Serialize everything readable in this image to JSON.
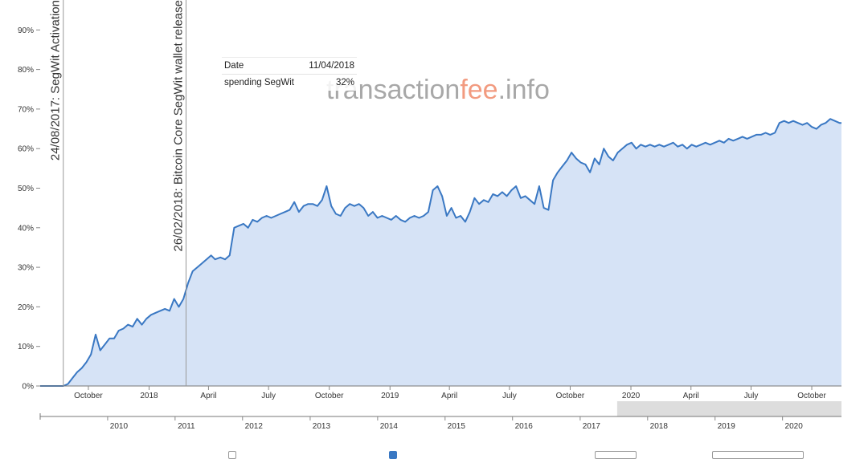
{
  "watermark": {
    "part1": "transaction",
    "part2": "fee",
    "part3": ".info",
    "color_main": "#9a9a9a",
    "color_accent": "#f08a6a"
  },
  "tooltip": {
    "date_label": "Date",
    "date_value": "11/04/2018",
    "metric_label": "spending SegWit",
    "metric_value": "32%"
  },
  "chart_data": {
    "type": "area",
    "color_line": "#3a78c3",
    "color_fill": "#d6e3f6",
    "ylim": [
      0,
      100
    ],
    "xlim": [
      "2017-07-20",
      "2020-11-15"
    ],
    "y_ticks": [
      {
        "value": 0,
        "label": "0%"
      },
      {
        "value": 10,
        "label": "10%"
      },
      {
        "value": 20,
        "label": "20%"
      },
      {
        "value": 30,
        "label": "30%"
      },
      {
        "value": 40,
        "label": "40%"
      },
      {
        "value": 50,
        "label": "50%"
      },
      {
        "value": 60,
        "label": "60%"
      },
      {
        "value": 70,
        "label": "70%"
      },
      {
        "value": 80,
        "label": "80%"
      },
      {
        "value": 90,
        "label": "90%"
      }
    ],
    "x_ticks": [
      {
        "date": "2017-10-01",
        "label": "October"
      },
      {
        "date": "2018-01-01",
        "label": "2018"
      },
      {
        "date": "2018-04-01",
        "label": "April"
      },
      {
        "date": "2018-07-01",
        "label": "July"
      },
      {
        "date": "2018-10-01",
        "label": "October"
      },
      {
        "date": "2019-01-01",
        "label": "2019"
      },
      {
        "date": "2019-04-01",
        "label": "April"
      },
      {
        "date": "2019-07-01",
        "label": "July"
      },
      {
        "date": "2019-10-01",
        "label": "October"
      },
      {
        "date": "2020-01-01",
        "label": "2020"
      },
      {
        "date": "2020-04-01",
        "label": "April"
      },
      {
        "date": "2020-07-01",
        "label": "July"
      },
      {
        "date": "2020-10-01",
        "label": "October"
      }
    ],
    "annotations": [
      {
        "date": "2017-08-24",
        "label": "24/08/2017: SegWit Activation"
      },
      {
        "date": "2018-02-26",
        "label": "26/02/2018: Bitcoin Core SegWit wallet release"
      }
    ],
    "series": [
      {
        "points": [
          [
            "2017-07-20",
            0
          ],
          [
            "2017-08-24",
            0
          ],
          [
            "2017-08-31",
            0.5
          ],
          [
            "2017-09-07",
            2
          ],
          [
            "2017-09-14",
            3.5
          ],
          [
            "2017-09-21",
            4.5
          ],
          [
            "2017-09-28",
            6
          ],
          [
            "2017-10-05",
            8
          ],
          [
            "2017-10-12",
            13
          ],
          [
            "2017-10-19",
            9
          ],
          [
            "2017-10-26",
            10.5
          ],
          [
            "2017-11-02",
            12
          ],
          [
            "2017-11-09",
            12
          ],
          [
            "2017-11-16",
            14
          ],
          [
            "2017-11-23",
            14.5
          ],
          [
            "2017-11-30",
            15.5
          ],
          [
            "2017-12-07",
            15
          ],
          [
            "2017-12-14",
            17
          ],
          [
            "2017-12-21",
            15.5
          ],
          [
            "2017-12-28",
            17
          ],
          [
            "2018-01-04",
            18
          ],
          [
            "2018-01-11",
            18.5
          ],
          [
            "2018-01-18",
            19
          ],
          [
            "2018-01-25",
            19.5
          ],
          [
            "2018-02-01",
            19
          ],
          [
            "2018-02-08",
            22
          ],
          [
            "2018-02-15",
            20
          ],
          [
            "2018-02-22",
            22
          ],
          [
            "2018-03-01",
            26
          ],
          [
            "2018-03-08",
            29
          ],
          [
            "2018-03-15",
            30
          ],
          [
            "2018-03-22",
            31
          ],
          [
            "2018-03-29",
            32
          ],
          [
            "2018-04-05",
            33
          ],
          [
            "2018-04-11",
            32
          ],
          [
            "2018-04-19",
            32.5
          ],
          [
            "2018-04-26",
            32
          ],
          [
            "2018-05-03",
            33
          ],
          [
            "2018-05-10",
            40
          ],
          [
            "2018-05-17",
            40.5
          ],
          [
            "2018-05-24",
            41
          ],
          [
            "2018-05-31",
            40
          ],
          [
            "2018-06-07",
            42
          ],
          [
            "2018-06-14",
            41.5
          ],
          [
            "2018-06-21",
            42.5
          ],
          [
            "2018-06-28",
            43
          ],
          [
            "2018-07-05",
            42.5
          ],
          [
            "2018-07-12",
            43
          ],
          [
            "2018-07-19",
            43.5
          ],
          [
            "2018-07-26",
            44
          ],
          [
            "2018-08-02",
            44.5
          ],
          [
            "2018-08-09",
            46.5
          ],
          [
            "2018-08-16",
            44
          ],
          [
            "2018-08-23",
            45.5
          ],
          [
            "2018-08-30",
            46
          ],
          [
            "2018-09-06",
            46
          ],
          [
            "2018-09-13",
            45.5
          ],
          [
            "2018-09-20",
            47
          ],
          [
            "2018-09-27",
            50.5
          ],
          [
            "2018-10-04",
            45.5
          ],
          [
            "2018-10-11",
            43.5
          ],
          [
            "2018-10-18",
            43
          ],
          [
            "2018-10-25",
            45
          ],
          [
            "2018-11-01",
            46
          ],
          [
            "2018-11-08",
            45.5
          ],
          [
            "2018-11-15",
            46
          ],
          [
            "2018-11-22",
            45
          ],
          [
            "2018-11-29",
            43
          ],
          [
            "2018-12-06",
            44
          ],
          [
            "2018-12-13",
            42.5
          ],
          [
            "2018-12-20",
            43
          ],
          [
            "2018-12-27",
            42.5
          ],
          [
            "2019-01-03",
            42
          ],
          [
            "2019-01-10",
            43
          ],
          [
            "2019-01-17",
            42
          ],
          [
            "2019-01-24",
            41.5
          ],
          [
            "2019-01-31",
            42.5
          ],
          [
            "2019-02-07",
            43
          ],
          [
            "2019-02-14",
            42.5
          ],
          [
            "2019-02-21",
            43
          ],
          [
            "2019-02-28",
            44
          ],
          [
            "2019-03-07",
            49.5
          ],
          [
            "2019-03-14",
            50.5
          ],
          [
            "2019-03-21",
            48
          ],
          [
            "2019-03-28",
            43
          ],
          [
            "2019-04-04",
            45
          ],
          [
            "2019-04-11",
            42.5
          ],
          [
            "2019-04-18",
            43
          ],
          [
            "2019-04-25",
            41.5
          ],
          [
            "2019-05-02",
            44
          ],
          [
            "2019-05-09",
            47.5
          ],
          [
            "2019-05-16",
            46
          ],
          [
            "2019-05-23",
            47
          ],
          [
            "2019-05-30",
            46.5
          ],
          [
            "2019-06-06",
            48.5
          ],
          [
            "2019-06-13",
            48
          ],
          [
            "2019-06-20",
            49
          ],
          [
            "2019-06-27",
            48
          ],
          [
            "2019-07-04",
            49.5
          ],
          [
            "2019-07-11",
            50.5
          ],
          [
            "2019-07-18",
            47.5
          ],
          [
            "2019-07-25",
            48
          ],
          [
            "2019-08-01",
            47
          ],
          [
            "2019-08-08",
            46
          ],
          [
            "2019-08-15",
            50.5
          ],
          [
            "2019-08-22",
            45
          ],
          [
            "2019-08-29",
            44.5
          ],
          [
            "2019-09-05",
            52
          ],
          [
            "2019-09-12",
            54
          ],
          [
            "2019-09-19",
            55.5
          ],
          [
            "2019-09-26",
            57
          ],
          [
            "2019-10-03",
            59
          ],
          [
            "2019-10-10",
            57.5
          ],
          [
            "2019-10-17",
            56.5
          ],
          [
            "2019-10-24",
            56
          ],
          [
            "2019-10-31",
            54
          ],
          [
            "2019-11-07",
            57.5
          ],
          [
            "2019-11-14",
            56
          ],
          [
            "2019-11-21",
            60
          ],
          [
            "2019-11-28",
            58
          ],
          [
            "2019-12-05",
            57
          ],
          [
            "2019-12-12",
            59
          ],
          [
            "2019-12-19",
            60
          ],
          [
            "2019-12-26",
            61
          ],
          [
            "2020-01-02",
            61.5
          ],
          [
            "2020-01-09",
            60
          ],
          [
            "2020-01-16",
            61
          ],
          [
            "2020-01-23",
            60.5
          ],
          [
            "2020-01-30",
            61
          ],
          [
            "2020-02-06",
            60.5
          ],
          [
            "2020-02-13",
            61
          ],
          [
            "2020-02-20",
            60.5
          ],
          [
            "2020-02-27",
            61
          ],
          [
            "2020-03-05",
            61.5
          ],
          [
            "2020-03-12",
            60.5
          ],
          [
            "2020-03-19",
            61
          ],
          [
            "2020-03-26",
            60
          ],
          [
            "2020-04-02",
            61
          ],
          [
            "2020-04-09",
            60.5
          ],
          [
            "2020-04-16",
            61
          ],
          [
            "2020-04-23",
            61.5
          ],
          [
            "2020-04-30",
            61
          ],
          [
            "2020-05-07",
            61.5
          ],
          [
            "2020-05-14",
            62
          ],
          [
            "2020-05-21",
            61.5
          ],
          [
            "2020-05-28",
            62.5
          ],
          [
            "2020-06-04",
            62
          ],
          [
            "2020-06-11",
            62.5
          ],
          [
            "2020-06-18",
            63
          ],
          [
            "2020-06-25",
            62.5
          ],
          [
            "2020-07-02",
            63
          ],
          [
            "2020-07-09",
            63.5
          ],
          [
            "2020-07-16",
            63.5
          ],
          [
            "2020-07-23",
            64
          ],
          [
            "2020-07-30",
            63.5
          ],
          [
            "2020-08-06",
            64
          ],
          [
            "2020-08-13",
            66.5
          ],
          [
            "2020-08-20",
            67
          ],
          [
            "2020-08-27",
            66.5
          ],
          [
            "2020-09-03",
            67
          ],
          [
            "2020-09-10",
            66.5
          ],
          [
            "2020-09-17",
            66
          ],
          [
            "2020-09-24",
            66.5
          ],
          [
            "2020-10-01",
            65.5
          ],
          [
            "2020-10-08",
            65
          ],
          [
            "2020-10-15",
            66
          ],
          [
            "2020-10-22",
            66.5
          ],
          [
            "2020-10-29",
            67.5
          ],
          [
            "2020-11-05",
            67
          ],
          [
            "2020-11-12",
            66.5
          ],
          [
            "2020-11-15",
            66.5
          ]
        ]
      }
    ],
    "navigator": {
      "x_ticks": [
        {
          "year": "2010",
          "label": "2010"
        },
        {
          "year": "2011",
          "label": "2011"
        },
        {
          "year": "2012",
          "label": "2012"
        },
        {
          "year": "2013",
          "label": "2013"
        },
        {
          "year": "2014",
          "label": "2014"
        },
        {
          "year": "2015",
          "label": "2015"
        },
        {
          "year": "2016",
          "label": "2016"
        },
        {
          "year": "2017",
          "label": "2017"
        },
        {
          "year": "2018",
          "label": "2018"
        },
        {
          "year": "2019",
          "label": "2019"
        },
        {
          "year": "2020",
          "label": "2020"
        }
      ],
      "selection_color": "#dddddd"
    }
  }
}
